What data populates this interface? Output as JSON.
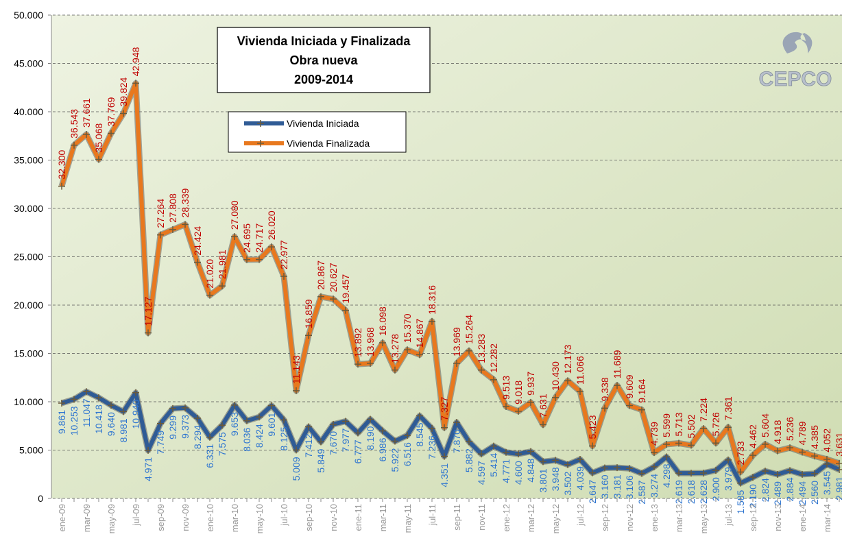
{
  "chart_data": {
    "type": "line",
    "title": [
      "Vivienda Iniciada y Finalizada",
      "Obra nueva",
      "2009-2014"
    ],
    "logo": "CEPCO",
    "categories": [
      "ene-09",
      null,
      "mar-09",
      null,
      "may-09",
      null,
      "jul-09",
      null,
      "sep-09",
      null,
      "nov-09",
      null,
      "ene-10",
      null,
      "mar-10",
      null,
      "may-10",
      null,
      "jul-10",
      null,
      "sep-10",
      null,
      "nov-10",
      null,
      "ene-11",
      null,
      "mar-11",
      null,
      "may-11",
      null,
      "jul-11",
      null,
      "sep-11",
      null,
      "nov-11",
      null,
      "ene-12",
      null,
      "mar-12",
      null,
      "may-12",
      null,
      "jul-12",
      null,
      "sep-12",
      null,
      "nov-12",
      null,
      "ene-13",
      null,
      "mar-13",
      null,
      "may-13",
      null,
      "jul-13",
      null,
      "sep-13",
      null,
      "nov-13",
      null,
      "ene-14",
      null,
      "mar-14",
      null
    ],
    "series": [
      {
        "name": "Vivienda Iniciada",
        "color": "#2f5b95",
        "label_color": "#2e75d0",
        "label_side": "below",
        "values": [
          9861,
          10253,
          11047,
          10418,
          9640,
          8981,
          10940,
          4971,
          7749,
          9299,
          9373,
          8294,
          6331,
          7575,
          9653,
          8036,
          8424,
          9601,
          8125,
          5009,
          7412,
          5849,
          7670,
          7977,
          6777,
          8190,
          6986,
          5922,
          6516,
          8545,
          7236,
          4351,
          7870,
          5882,
          4597,
          5414,
          4771,
          4600,
          4848,
          3801,
          3948,
          3502,
          4039,
          2647,
          3160,
          3181,
          3106,
          2587,
          3274,
          4298,
          2619,
          2618,
          2628,
          2900,
          3979,
          1585,
          2190,
          2824,
          2489,
          2884,
          2494,
          2560,
          3545,
          2981
        ],
        "value_labels": [
          "9.861",
          "10.253",
          "11.047",
          "10.418",
          "9.640",
          "8.981",
          "10.940",
          "4.971",
          "7.749",
          "9.299",
          "9.373",
          "8.294",
          "6.331",
          "7.575",
          "9.653",
          "8.036",
          "8.424",
          "9.601",
          "8.125",
          "5.009",
          "7.412",
          "5.849",
          "7.670",
          "7.977",
          "6.777",
          "8.190",
          "6.986",
          "5.922",
          "6.516",
          "8.545",
          "7.236",
          "4.351",
          "7.870",
          "5.882",
          "4.597",
          "5.414",
          "4.771",
          "4.600",
          "4.848",
          "3.801",
          "3.948",
          "3.502",
          "4.039",
          "2.647",
          "3.160",
          "3.181",
          "3.106",
          "2.587",
          "3.274",
          "4.298",
          "2.619",
          "2.618",
          "2.628",
          "2.900",
          "3.979",
          "1.585",
          "2.190",
          "2.824",
          "2.489",
          "2.884",
          "2.494",
          "2.560",
          "3.545",
          "2.981"
        ]
      },
      {
        "name": "Vivienda Finalizada",
        "color": "#e8781e",
        "label_color": "#c00000",
        "label_side": "above",
        "values": [
          32300,
          36543,
          37661,
          35068,
          37769,
          39824,
          42948,
          17127,
          27264,
          27808,
          28339,
          24424,
          21020,
          21981,
          27080,
          24695,
          24717,
          26020,
          22977,
          11143,
          16859,
          20867,
          20627,
          19457,
          13892,
          13968,
          16098,
          13278,
          15370,
          14867,
          18316,
          7327,
          13969,
          15264,
          13283,
          12282,
          9513,
          9018,
          9937,
          7631,
          10430,
          12173,
          11066,
          5423,
          9338,
          11689,
          9609,
          9164,
          4739,
          5599,
          5713,
          5502,
          7224,
          5726,
          7361,
          2733,
          4462,
          5604,
          4918,
          5236,
          4789,
          4385,
          4052,
          3631
        ],
        "value_labels": [
          "32.300",
          "36.543",
          "37.661",
          "35.068",
          "37.769",
          "39.824",
          "42.948",
          "17.127",
          "27.264",
          "27.808",
          "28.339",
          "24.424",
          "21.020",
          "21.981",
          "27.080",
          "24.695",
          "24.717",
          "26.020",
          "22.977",
          "11.143",
          "16.859",
          "20.867",
          "20.627",
          "19.457",
          "13.892",
          "13.968",
          "16.098",
          "13.278",
          "15.370",
          "14.867",
          "18.316",
          "7.327",
          "13.969",
          "15.264",
          "13.283",
          "12.282",
          "9.513",
          "9.018",
          "9.937",
          "7.631",
          "10.430",
          "12.173",
          "11.066",
          "5.423",
          "9.338",
          "11.689",
          "9.609",
          "9.164",
          "4.739",
          "5.599",
          "5.713",
          "5.502",
          "7.224",
          "5.726",
          "7.361",
          "2.733",
          "4.462",
          "5.604",
          "4.918",
          "5.236",
          "4.789",
          "4.385",
          "4.052",
          "3.631"
        ]
      }
    ],
    "ylim": [
      0,
      50000
    ],
    "yticks": [
      0,
      {
        "value": 5000,
        "label": "5.000"
      },
      {
        "value": 10000,
        "label": "10.000"
      },
      {
        "value": 15000,
        "label": "15.000"
      },
      {
        "value": 20000,
        "label": "20.000"
      },
      {
        "value": 25000,
        "label": "25.000"
      },
      {
        "value": 30000,
        "label": "30.000"
      },
      {
        "value": 35000,
        "label": "35.000"
      },
      {
        "value": 40000,
        "label": "40.000"
      },
      {
        "value": 45000,
        "label": "45.000"
      },
      {
        "value": 50000,
        "label": "50.000"
      }
    ],
    "grid": true
  }
}
